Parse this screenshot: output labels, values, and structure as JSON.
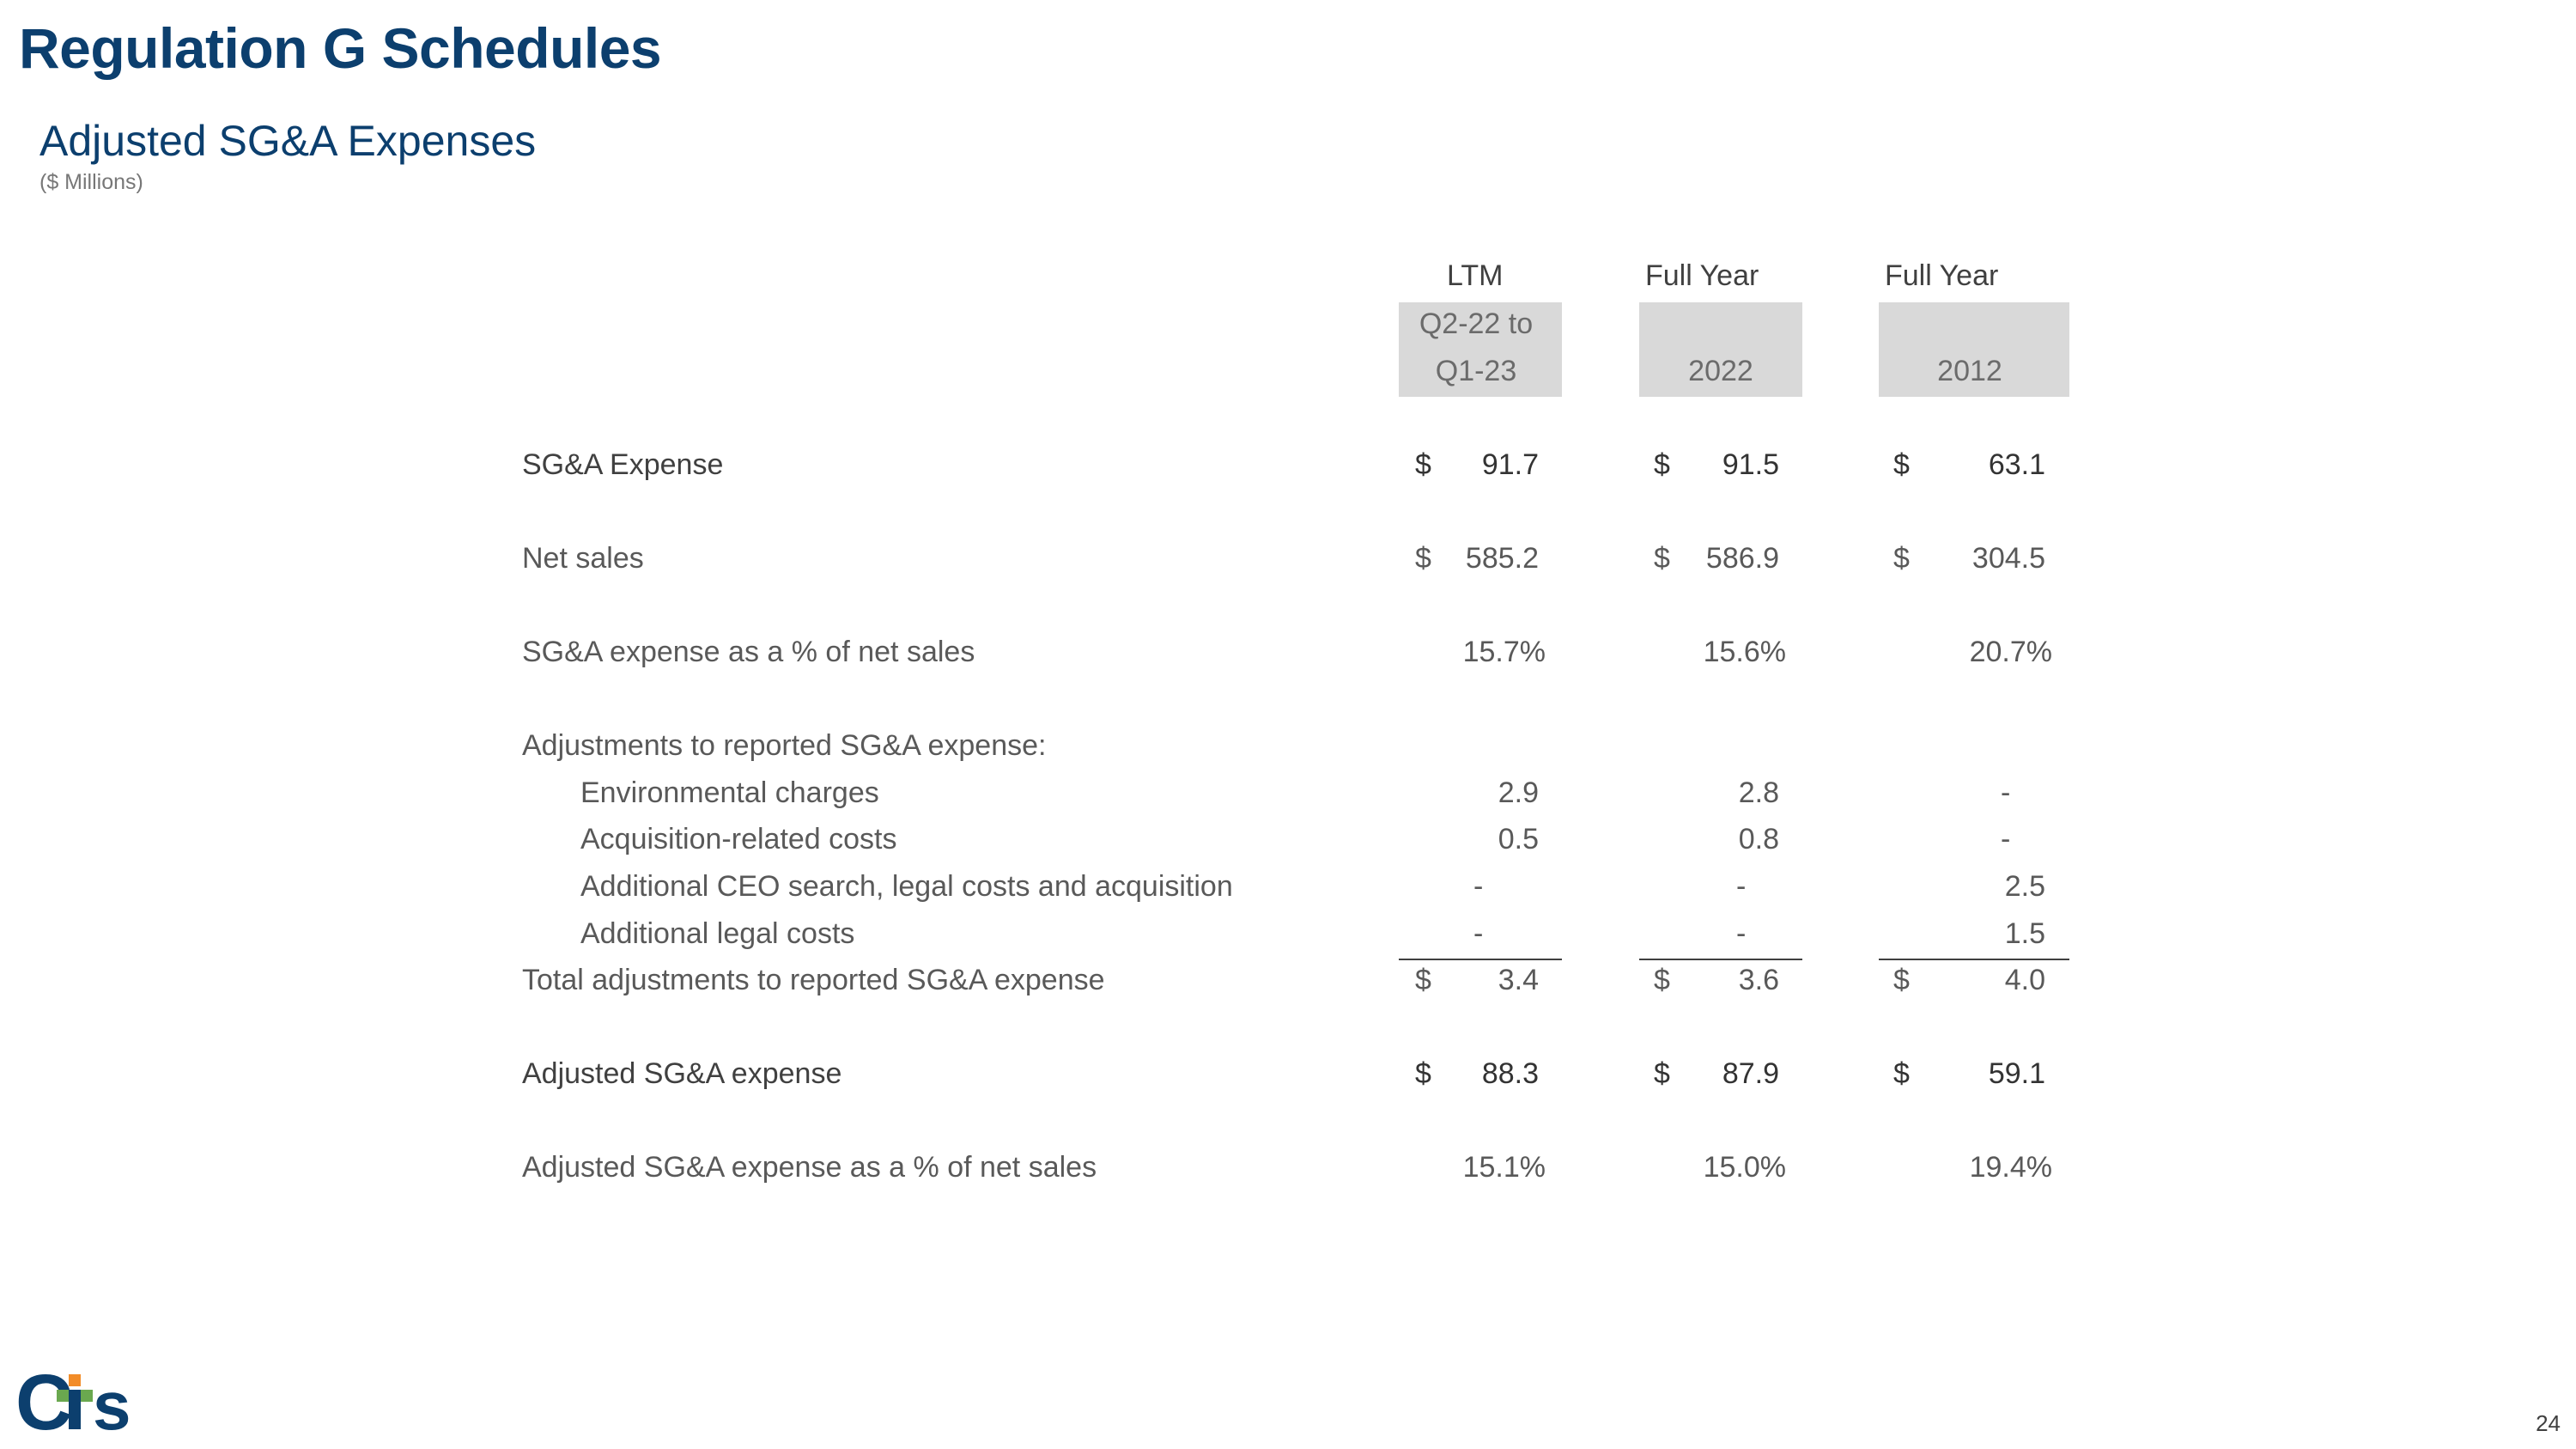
{
  "page": {
    "title": "Regulation G Schedules",
    "subtitle": "Adjusted SG&A Expenses",
    "units": "($ Millions)",
    "page_number": "24"
  },
  "logo": {
    "text": "CTS",
    "colors": {
      "c_s": "#0c3f6e",
      "t_top": "#f28c28",
      "t_mid": "#6aa84f"
    }
  },
  "columns": [
    {
      "header": "LTM",
      "sub1": "Q2-22 to",
      "sub2": "Q1-23"
    },
    {
      "header": "Full Year",
      "sub1": "",
      "sub2": "2022"
    },
    {
      "header": "Full Year",
      "sub1": "",
      "sub2": "2012"
    }
  ],
  "rows": {
    "sga_expense": {
      "label": "SG&A Expense",
      "values": [
        {
          "d": "$",
          "v": "91.7"
        },
        {
          "d": "$",
          "v": "91.5"
        },
        {
          "d": "$",
          "v": "63.1"
        }
      ]
    },
    "net_sales": {
      "label": "Net sales",
      "values": [
        {
          "d": "$",
          "v": "585.2"
        },
        {
          "d": "$",
          "v": "586.9"
        },
        {
          "d": "$",
          "v": "304.5"
        }
      ]
    },
    "sga_pct": {
      "label": "SG&A expense as a % of net sales",
      "values": [
        "15.7%",
        "15.6%",
        "20.7%"
      ]
    },
    "adjustments_header": {
      "label": "Adjustments to reported SG&A expense:"
    },
    "environmental": {
      "label": "Environmental charges",
      "values": [
        "2.9",
        "2.8",
        "-"
      ]
    },
    "acquisition": {
      "label": "Acquisition-related costs",
      "values": [
        "0.5",
        "0.8",
        "-"
      ]
    },
    "ceo_search": {
      "label": "Additional CEO search, legal costs and acquisition",
      "values": [
        "-",
        "-",
        "2.5"
      ]
    },
    "legal_costs": {
      "label": "Additional legal costs",
      "values": [
        "-",
        "-",
        "1.5"
      ]
    },
    "total_adjustments": {
      "label": "Total adjustments to reported SG&A expense",
      "values": [
        {
          "d": "$",
          "v": "3.4"
        },
        {
          "d": "$",
          "v": "3.6"
        },
        {
          "d": "$",
          "v": "4.0"
        }
      ]
    },
    "adjusted_sga": {
      "label": "Adjusted SG&A expense",
      "values": [
        {
          "d": "$",
          "v": "88.3"
        },
        {
          "d": "$",
          "v": "87.9"
        },
        {
          "d": "$",
          "v": "59.1"
        }
      ]
    },
    "adjusted_pct": {
      "label": "Adjusted SG&A expense as a % of net sales",
      "values": [
        "15.1%",
        "15.0%",
        "19.4%"
      ]
    }
  }
}
